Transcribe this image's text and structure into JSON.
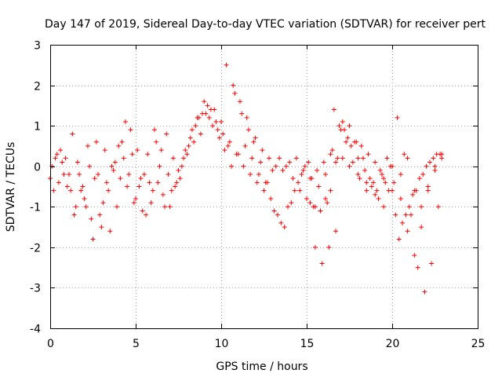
{
  "chart_data": {
    "type": "scatter",
    "title": "Day 147 of 2019, Sidereal Day-to-day VTEC variation (SDTVAR) for receiver pert",
    "xlabel": "GPS time / hours",
    "ylabel": "SDTVAR / TECUs",
    "xlim": [
      0,
      25
    ],
    "ylim": [
      -4,
      3
    ],
    "x_ticks": [
      0,
      5,
      10,
      15,
      20,
      25
    ],
    "y_ticks": [
      -4,
      -3,
      -2,
      -1,
      0,
      1,
      2,
      3
    ],
    "marker": "+",
    "color": "#ff0000",
    "grid": true,
    "series": [
      {
        "name": "trace-1",
        "x": [
          0.0,
          0.3,
          0.6,
          1.0,
          1.4,
          1.8,
          2.2,
          2.6,
          3.0,
          3.4,
          3.8,
          4.2,
          4.6,
          5.0,
          5.4,
          5.8,
          6.2,
          6.6,
          7.0,
          7.4,
          7.8,
          8.2,
          8.6,
          9.0,
          9.4,
          9.8,
          10.2,
          10.6,
          11.0,
          11.4,
          11.8,
          12.2,
          12.6,
          13.0,
          13.4,
          13.8,
          14.2,
          14.6,
          15.0,
          15.4,
          15.8,
          16.2,
          16.6,
          17.0,
          17.4,
          17.8,
          18.2,
          18.6,
          19.0,
          19.4,
          19.8,
          20.2,
          20.6,
          21.0,
          21.4,
          21.8,
          22.2,
          22.6,
          22.9
        ],
        "y": [
          -0.3,
          0.2,
          0.4,
          -0.5,
          -1.2,
          -0.6,
          0.5,
          -0.3,
          -1.5,
          -0.6,
          0.1,
          0.6,
          -0.2,
          -0.8,
          -1.1,
          -0.4,
          0.6,
          -0.7,
          -1.0,
          -0.4,
          0.2,
          0.7,
          1.2,
          1.6,
          1.4,
          0.9,
          0.4,
          0.0,
          0.3,
          0.5,
          0.2,
          -0.2,
          -0.4,
          -0.1,
          0.2,
          0.0,
          -0.3,
          -0.6,
          -0.8,
          -1.0,
          -1.1,
          -0.9,
          1.4,
          0.9,
          0.7,
          0.6,
          0.5,
          0.3,
          0.1,
          -0.2,
          -0.6,
          -1.2,
          -1.4,
          -1.0,
          -0.6,
          -0.2,
          0.1,
          0.3,
          0.2
        ]
      },
      {
        "name": "trace-2",
        "x": [
          0.1,
          0.5,
          0.9,
          1.3,
          1.7,
          2.1,
          2.5,
          2.9,
          3.3,
          3.7,
          4.1,
          4.5,
          4.9,
          5.3,
          5.7,
          6.1,
          6.5,
          6.9,
          7.3,
          7.7,
          8.1,
          8.5,
          8.9,
          9.3,
          9.7,
          10.1,
          10.5,
          10.9,
          11.3,
          11.7,
          12.1,
          12.5,
          12.9,
          13.3,
          13.7,
          14.1,
          14.5,
          14.9,
          15.3,
          15.7,
          16.1,
          16.5,
          16.9,
          17.3,
          17.7,
          18.1,
          18.5,
          18.9,
          19.3,
          19.7,
          20.1,
          20.5,
          20.9,
          21.3,
          21.7,
          22.1,
          22.5,
          22.9
        ],
        "y": [
          0.0,
          -0.4,
          0.2,
          0.8,
          -0.2,
          -1.0,
          -1.8,
          -1.2,
          -0.4,
          -0.1,
          -0.3,
          -0.5,
          -0.9,
          -0.3,
          0.3,
          0.9,
          0.4,
          -0.2,
          -0.5,
          0.0,
          0.5,
          1.0,
          1.3,
          1.2,
          1.1,
          0.8,
          0.6,
          0.3,
          0.0,
          -0.2,
          -0.4,
          -0.6,
          -0.8,
          -1.2,
          -1.5,
          -0.9,
          -0.4,
          0.0,
          -0.3,
          -0.5,
          -0.2,
          0.4,
          1.0,
          0.6,
          0.1,
          -0.3,
          -0.6,
          -0.4,
          -0.1,
          0.2,
          -0.4,
          -0.8,
          -1.6,
          -2.2,
          -1.5,
          -0.6,
          0.0,
          0.3
        ]
      },
      {
        "name": "trace-3",
        "x": [
          0.2,
          0.7,
          1.1,
          1.5,
          1.9,
          2.3,
          2.7,
          3.1,
          3.5,
          3.9,
          4.3,
          4.7,
          5.1,
          5.5,
          5.9,
          6.3,
          6.7,
          7.1,
          7.5,
          7.9,
          8.3,
          8.7,
          9.1,
          9.5,
          9.9,
          10.3,
          10.7,
          11.1,
          11.5,
          11.9,
          12.3,
          12.7,
          13.1,
          13.5,
          13.9,
          14.3,
          14.7,
          15.1,
          15.5,
          15.9,
          16.3,
          16.7,
          17.1,
          17.5,
          17.9,
          18.3,
          18.7,
          19.1,
          19.5,
          19.9,
          20.3,
          20.7,
          21.1,
          21.5,
          21.9,
          22.3,
          22.7
        ],
        "y": [
          -0.6,
          0.1,
          -0.2,
          -1.0,
          -0.5,
          0.0,
          0.6,
          -0.9,
          -1.6,
          -1.0,
          0.2,
          0.9,
          0.4,
          -0.2,
          -0.9,
          -0.4,
          -1.0,
          -0.6,
          -0.1,
          0.4,
          0.9,
          1.2,
          1.3,
          1.0,
          0.7,
          2.5,
          2.0,
          1.6,
          1.2,
          0.6,
          0.1,
          -0.4,
          -1.1,
          -1.4,
          -1.0,
          -0.6,
          -0.2,
          0.1,
          -2.0,
          -2.4,
          -2.0,
          -1.6,
          1.1,
          1.0,
          0.6,
          0.2,
          -0.3,
          -0.6,
          -0.3,
          0.0,
          1.2,
          0.3,
          -1.2,
          -2.5,
          -3.1,
          -2.4,
          -1.0
        ]
      },
      {
        "name": "trace-4",
        "x": [
          0.4,
          0.8,
          1.2,
          1.6,
          2.0,
          2.4,
          2.8,
          3.2,
          3.6,
          4.0,
          4.4,
          4.8,
          5.2,
          5.6,
          6.0,
          6.4,
          6.8,
          7.2,
          7.6,
          8.0,
          8.4,
          8.8,
          9.2,
          9.6,
          10.0,
          10.4,
          10.8,
          11.2,
          11.6,
          12.0,
          12.4,
          12.8,
          13.2,
          13.6,
          14.0,
          14.4,
          14.8,
          15.2,
          15.6,
          16.0,
          16.4,
          16.8,
          17.2,
          17.6,
          18.0,
          18.4,
          18.8,
          19.2,
          19.6,
          20.0,
          20.4,
          20.8,
          21.2,
          21.6,
          22.0,
          22.4,
          22.8
        ],
        "y": [
          0.3,
          -0.2,
          -0.6,
          0.1,
          -0.8,
          -1.3,
          -0.2,
          0.4,
          0.0,
          0.5,
          1.1,
          0.3,
          -0.5,
          -1.2,
          -0.6,
          0.0,
          0.8,
          0.2,
          -0.3,
          0.3,
          0.6,
          0.8,
          1.5,
          1.4,
          1.1,
          0.5,
          1.8,
          1.3,
          0.9,
          0.7,
          0.4,
          0.2,
          0.0,
          -0.1,
          0.1,
          0.2,
          -0.1,
          -0.3,
          -0.1,
          0.1,
          0.3,
          0.2,
          0.9,
          0.5,
          0.2,
          -0.1,
          -0.5,
          -0.8,
          -0.4,
          0.0,
          -1.8,
          -1.2,
          -0.7,
          -0.3,
          0.0,
          0.2,
          0.3
        ]
      },
      {
        "name": "trace-5",
        "x": [
          15.2,
          15.5,
          15.8,
          16.1,
          16.4,
          16.7,
          17.1,
          17.5,
          18.0,
          18.5,
          19.0,
          19.5,
          20.0,
          20.5,
          20.9,
          21.3,
          21.7,
          22.1,
          22.5
        ],
        "y": [
          -0.9,
          -1.0,
          -1.1,
          -0.8,
          -0.6,
          0.1,
          0.2,
          0.0,
          -0.2,
          -0.4,
          -0.7,
          -1.0,
          -0.6,
          -0.2,
          0.2,
          -0.6,
          -1.0,
          -0.5,
          -0.1
        ]
      }
    ]
  }
}
